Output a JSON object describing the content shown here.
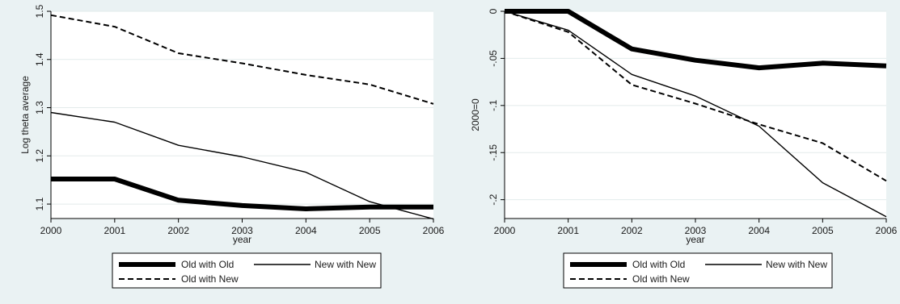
{
  "chart_data": [
    {
      "type": "line",
      "ylabel": "Log theta average",
      "xlabel": "year",
      "x": [
        2000,
        2001,
        2002,
        2003,
        2004,
        2005,
        2006
      ],
      "xlim": [
        2000,
        2006
      ],
      "ylim": [
        1.07,
        1.5
      ],
      "yticks": [
        1.1,
        1.2,
        1.3,
        1.4,
        1.5
      ],
      "ytick_labels": [
        "1.1",
        "1.2",
        "1.3",
        "1.4",
        "1.5"
      ],
      "series": [
        {
          "name": "Old with Old",
          "style": "thick",
          "values": [
            1.152,
            1.152,
            1.108,
            1.097,
            1.09,
            1.094,
            1.094
          ]
        },
        {
          "name": "New with New",
          "style": "thin",
          "values": [
            1.29,
            1.27,
            1.222,
            1.198,
            1.166,
            1.105,
            1.069
          ]
        },
        {
          "name": "Old with New",
          "style": "dashed",
          "values": [
            1.492,
            1.468,
            1.413,
            1.392,
            1.368,
            1.348,
            1.308
          ]
        }
      ],
      "grid": true,
      "legend_position": "bottom"
    },
    {
      "type": "line",
      "ylabel": "2000=0",
      "xlabel": "year",
      "x": [
        2000,
        2001,
        2002,
        2003,
        2004,
        2005,
        2006
      ],
      "xlim": [
        2000,
        2006
      ],
      "ylim": [
        -0.22,
        0.0
      ],
      "yticks": [
        0,
        -0.05,
        -0.1,
        -0.15,
        -0.2
      ],
      "ytick_labels": [
        "0",
        "-.05",
        "-.1",
        "-.15",
        "-.2"
      ],
      "series": [
        {
          "name": "Old with Old",
          "style": "thick",
          "values": [
            0,
            0,
            -0.04,
            -0.052,
            -0.06,
            -0.055,
            -0.058
          ]
        },
        {
          "name": "New with New",
          "style": "thin",
          "values": [
            0,
            -0.02,
            -0.067,
            -0.09,
            -0.122,
            -0.182,
            -0.218
          ]
        },
        {
          "name": "Old with New",
          "style": "dashed",
          "values": [
            0,
            -0.022,
            -0.078,
            -0.098,
            -0.12,
            -0.14,
            -0.18
          ]
        }
      ],
      "grid": true,
      "legend_position": "bottom"
    }
  ],
  "colors": {
    "background": "#eaf2f3",
    "plot_area": "#ffffff",
    "grid": "#e3ebeb",
    "lines": "#000000"
  }
}
